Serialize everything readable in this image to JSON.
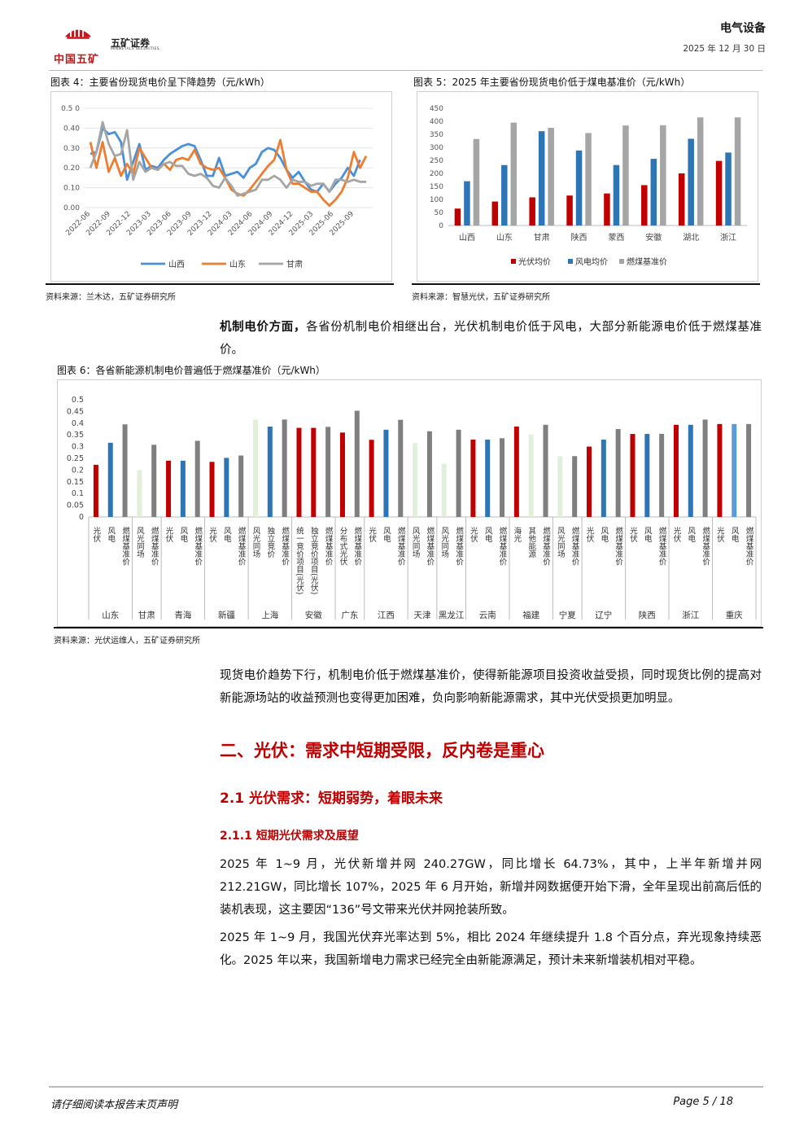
{
  "header": {
    "logo_group": "中国五矿",
    "logo_company": "五矿证券",
    "logo_company_en": "MINMETALS SECURITIES",
    "sector": "电气设备",
    "date": "2025 年 12 月 30 日"
  },
  "figure4": {
    "caption": "图表 4：主要省份现货电价呈下降趋势（元/kWh）",
    "source": "资料来源：兰木达，五矿证券研究所"
  },
  "figure5": {
    "caption": "图表 5：2025 年主要省份现货电价低于煤电基准价（元/kWh）",
    "source": "资料来源：智慧光伏，五矿证券研究所"
  },
  "figure6": {
    "caption": "图表 6：各省新能源机制电价普遍低于燃煤基准价（元/kWh）",
    "source": "资料来源：光伏运维人，五矿证券研究所"
  },
  "body": {
    "p1_bold": "机制电价方面，",
    "p1_rest": "各省份机制电价相继出台，光伏机制电价低于风电，大部分新能源电价低于燃煤基准价。",
    "p2": "现货电价趋势下行，机制电价低于燃煤基准价，使得新能源项目投资收益受损，同时现货比例的提高对新能源场站的收益预测也变得更加困难，负向影响新能源需求，其中光伏受损更加明显。",
    "h2": "二、光伏：需求中短期受限，反内卷是重心",
    "h3": "2.1 光伏需求：短期弱势，着眼未来",
    "h4": "2.1.1 短期光伏需求及展望",
    "p3": "2025 年 1~9 月，光伏新增并网 240.27GW，同比增长 64.73%，其中，上半年新增并网 212.21GW，同比增长 107%，2025 年 6 月开始，新增并网数据便开始下滑，全年呈现出前高后低的装机表现，这主要因“136”号文带来光伏并网抢装所致。",
    "p4": "2025 年 1~9 月，我国光伏弃光率达到 5%，相比 2024 年继续提升 1.8 个百分点，弃光现象持续恶化。2025 年以来，我国新增电力需求已经完全由新能源满足，预计未来新增装机相对平稳。"
  },
  "footer": {
    "disclaimer": "请仔细阅读本报告末页声明",
    "page": "Page   5 / 18"
  },
  "chart_data": [
    {
      "type": "line",
      "title": "",
      "x_ticks": [
        "2022-06",
        "2022-09",
        "2022-12",
        "2023-03",
        "2023-06",
        "2023-09",
        "2023-12",
        "2024-03",
        "2024-06",
        "2024-09",
        "2024-12",
        "2025-03",
        "2025-06",
        "2025-09"
      ],
      "x_start": "2022-06",
      "y_ticks": [
        "0.00",
        "0.10",
        "0.20",
        "0.30",
        "0.40",
        "0.5 0"
      ],
      "ylim": [
        0,
        0.5
      ],
      "series": [
        {
          "name": "山西",
          "color": "#4a90d9",
          "values": [
            0.27,
            0.28,
            0.4,
            0.37,
            0.38,
            0.33,
            0.14,
            0.23,
            0.32,
            0.19,
            0.21,
            0.2,
            0.24,
            0.27,
            0.29,
            0.31,
            0.32,
            0.31,
            0.24,
            0.16,
            0.16,
            0.25,
            0.16,
            0.17,
            0.18,
            0.15,
            0.2,
            0.22,
            0.28,
            0.3,
            0.29,
            0.25,
            0.19,
            0.15,
            0.18,
            0.13,
            0.09,
            0.08,
            0.12,
            0.08,
            0.12,
            0.15,
            0.2,
            0.16,
            0.24
          ]
        },
        {
          "name": "山东",
          "color": "#ed7d31",
          "values": [
            0.33,
            0.2,
            0.33,
            0.18,
            0.25,
            0.16,
            0.22,
            0.17,
            0.3,
            0.25,
            0.2,
            0.19,
            0.22,
            0.19,
            0.24,
            0.25,
            0.24,
            0.29,
            0.22,
            0.2,
            0.19,
            0.2,
            0.15,
            0.09,
            0.07,
            0.06,
            0.09,
            0.13,
            0.17,
            0.21,
            0.24,
            0.34,
            0.19,
            0.12,
            0.12,
            0.1,
            0.08,
            0.08,
            0.04,
            0.01,
            0.04,
            0.08,
            0.15,
            0.28,
            0.2,
            0.26
          ]
        },
        {
          "name": "甘肃",
          "color": "#a5a5a5",
          "values": [
            0.2,
            0.28,
            0.43,
            0.32,
            0.26,
            0.27,
            0.39,
            0.14,
            0.23,
            0.18,
            0.2,
            0.19,
            0.22,
            0.23,
            0.21,
            0.21,
            0.17,
            0.16,
            0.17,
            0.15,
            0.11,
            0.1,
            0.15,
            0.11,
            0.06,
            0.07,
            0.08,
            0.09,
            0.14,
            0.14,
            0.16,
            0.14,
            0.1,
            0.14,
            0.13,
            0.13,
            0.11,
            0.12,
            0.12,
            0.08,
            0.14,
            0.14,
            0.13,
            0.14,
            0.13,
            0.13
          ]
        }
      ]
    },
    {
      "type": "bar",
      "title": "",
      "categories": [
        "山西",
        "山东",
        "甘肃",
        "陕西",
        "蒙西",
        "安徽",
        "湖北",
        "浙江"
      ],
      "ylim": [
        0,
        450
      ],
      "y_ticks": [
        0,
        50,
        100,
        150,
        200,
        250,
        300,
        350,
        400,
        450
      ],
      "series": [
        {
          "name": "光伏均价",
          "color": "#c00000",
          "values": [
            65,
            92,
            108,
            115,
            123,
            155,
            200,
            248
          ]
        },
        {
          "name": "风电均价",
          "color": "#2e75b6",
          "values": [
            170,
            232,
            362,
            288,
            232,
            256,
            333,
            280
          ]
        },
        {
          "name": "燃煤基准价",
          "color": "#a5a5a5",
          "values": [
            332,
            395,
            375,
            355,
            384,
            385,
            415,
            415
          ]
        }
      ]
    },
    {
      "type": "bar",
      "title": "",
      "ylim": [
        0,
        0.5
      ],
      "y_ticks": [
        "0",
        "0.05",
        "0.1",
        "0.15",
        "0.2",
        "0.25",
        "0.3",
        "0.35",
        "0.4",
        "0.45",
        "0.5"
      ],
      "bars": [
        {
          "label": "光伏",
          "value": 0.2225,
          "kind": "pv"
        },
        {
          "label": "风电",
          "value": 0.3165,
          "kind": "wind"
        },
        {
          "label": "燃煤基准价",
          "value": 0.3949,
          "kind": "coal"
        },
        {
          "label": "风光同场",
          "value": 0.1998,
          "kind": "light"
        },
        {
          "label": "燃煤基准价",
          "value": 0.3078,
          "kind": "coal"
        },
        {
          "label": "光伏",
          "value": 0.24,
          "kind": "pv"
        },
        {
          "label": "风电",
          "value": 0.24,
          "kind": "wind"
        },
        {
          "label": "燃煤基准价",
          "value": 0.3247,
          "kind": "coal"
        },
        {
          "label": "光伏",
          "value": 0.235,
          "kind": "pv"
        },
        {
          "label": "风电",
          "value": 0.252,
          "kind": "wind"
        },
        {
          "label": "燃煤基准价",
          "value": 0.262,
          "kind": "coal"
        },
        {
          "label": "风光同场",
          "value": 0.4155,
          "kind": "light"
        },
        {
          "label": "独立竞价",
          "value": 0.3855,
          "kind": "wind"
        },
        {
          "label": "燃煤基准价",
          "value": 0.4155,
          "kind": "coal"
        },
        {
          "label": "统一竞价项目(光伏)",
          "value": 0.38,
          "kind": "pv"
        },
        {
          "label": "独立竞价项目(光伏)",
          "value": 0.38,
          "kind": "pv"
        },
        {
          "label": "燃煤基准价",
          "value": 0.3844,
          "kind": "coal"
        },
        {
          "label": "分布式光伏",
          "value": 0.36,
          "kind": "pv"
        },
        {
          "label": "燃煤基准价",
          "value": 0.453,
          "kind": "coal"
        },
        {
          "label": "光伏",
          "value": 0.329,
          "kind": "pv"
        },
        {
          "label": "风电",
          "value": 0.372,
          "kind": "wind"
        },
        {
          "label": "燃煤基准价",
          "value": 0.4143,
          "kind": "coal"
        },
        {
          "label": "风光同场",
          "value": 0.3155,
          "kind": "light"
        },
        {
          "label": "燃煤基准价",
          "value": 0.3655,
          "kind": "coal"
        },
        {
          "label": "风光同场",
          "value": 0.2268,
          "kind": "light"
        },
        {
          "label": "燃煤基准价",
          "value": 0.372,
          "kind": "coal"
        },
        {
          "label": "光伏",
          "value": 0.33,
          "kind": "pv"
        },
        {
          "label": "风电",
          "value": 0.33,
          "kind": "wind"
        },
        {
          "label": "燃煤基准价",
          "value": 0.3358,
          "kind": "coal"
        },
        {
          "label": "海光",
          "value": 0.3856,
          "kind": "pv"
        },
        {
          "label": "其他能源",
          "value": 0.352,
          "kind": "light"
        },
        {
          "label": "燃煤基准价",
          "value": 0.3932,
          "kind": "coal"
        },
        {
          "label": "风光同场",
          "value": 0.2595,
          "kind": "light"
        },
        {
          "label": "燃煤基准价",
          "value": 0.2595,
          "kind": "coal"
        },
        {
          "label": "光伏",
          "value": 0.3,
          "kind": "pv"
        },
        {
          "label": "风电",
          "value": 0.33,
          "kind": "wind"
        },
        {
          "label": "燃煤基准价",
          "value": 0.3749,
          "kind": "coal"
        },
        {
          "label": "光伏",
          "value": 0.354,
          "kind": "pv"
        },
        {
          "label": "风电",
          "value": 0.354,
          "kind": "wind"
        },
        {
          "label": "燃煤基准价",
          "value": 0.3545,
          "kind": "coal"
        },
        {
          "label": "光伏",
          "value": 0.393,
          "kind": "pv"
        },
        {
          "label": "风电",
          "value": 0.393,
          "kind": "wind"
        },
        {
          "label": "燃煤基准价",
          "value": 0.4153,
          "kind": "coal"
        },
        {
          "label": "光伏",
          "value": 0.3964,
          "kind": "pv"
        },
        {
          "label": "风电",
          "value": 0.3964,
          "kind": "wind2"
        },
        {
          "label": "燃煤基准价",
          "value": 0.3964,
          "kind": "coal"
        }
      ],
      "groups": [
        {
          "name": "山东",
          "count": 3
        },
        {
          "name": "甘肃",
          "count": 2
        },
        {
          "name": "青海",
          "count": 3
        },
        {
          "name": "新疆",
          "count": 3
        },
        {
          "name": "上海",
          "count": 3
        },
        {
          "name": "安徽",
          "count": 3
        },
        {
          "name": "广东",
          "count": 2
        },
        {
          "name": "江西",
          "count": 3
        },
        {
          "name": "天津",
          "count": 2
        },
        {
          "name": "黑龙江",
          "count": 2
        },
        {
          "name": "云南",
          "count": 3
        },
        {
          "name": "福建",
          "count": 3
        },
        {
          "name": "宁夏",
          "count": 2
        },
        {
          "name": "辽宁",
          "count": 3
        },
        {
          "name": "陕西",
          "count": 3
        },
        {
          "name": "浙江",
          "count": 3
        },
        {
          "name": "重庆",
          "count": 3
        }
      ],
      "colors": {
        "pv": "#c00000",
        "wind": "#2e75b6",
        "wind2": "#5b9bd5",
        "coal": "#7f7f7f",
        "light": "#e2efda"
      }
    }
  ]
}
